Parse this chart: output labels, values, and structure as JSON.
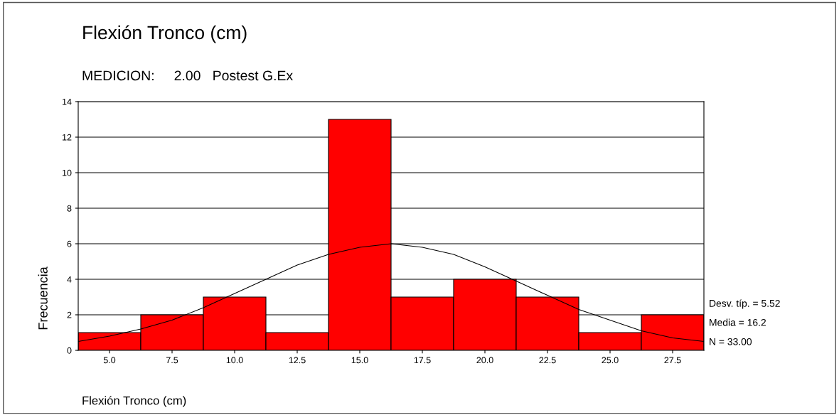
{
  "chart_data": {
    "type": "histogram",
    "title": "Flexión Tronco (cm)",
    "subtitle": "MEDICION:     2.00   Postest G.Ex",
    "xlabel": "Flexión Tronco (cm)",
    "ylabel": "Frecuencia",
    "bins": [
      3.75,
      6.25,
      8.75,
      11.25,
      13.75,
      16.25,
      18.75,
      21.25,
      23.75,
      26.25,
      28.75
    ],
    "values": [
      1,
      2,
      3,
      1,
      13,
      3,
      4,
      3,
      1,
      2
    ],
    "color": "#ff0000",
    "series": [
      {
        "type": "line",
        "color": "#000000",
        "x": [
          3.75,
          5,
          6.25,
          7.5,
          8.75,
          10,
          11.25,
          12.5,
          13.75,
          15,
          16.25,
          17.5,
          18.75,
          20,
          21.25,
          22.5,
          23.75,
          25,
          26.25,
          27.5,
          28.75
        ],
        "values": [
          0.5,
          0.8,
          1.2,
          1.7,
          2.4,
          3.2,
          4.0,
          4.8,
          5.4,
          5.8,
          6.0,
          5.8,
          5.4,
          4.7,
          3.9,
          3.1,
          2.3,
          1.7,
          1.1,
          0.7,
          0.5
        ]
      }
    ],
    "xlim": [
      3.75,
      28.75
    ],
    "xticks": [
      {
        "value": 5,
        "label": "5.0"
      },
      {
        "value": 7.5,
        "label": "7.5"
      },
      {
        "value": 10,
        "label": "10.0"
      },
      {
        "value": 12.5,
        "label": "12.5"
      },
      {
        "value": 15,
        "label": "15.0"
      },
      {
        "value": 17.5,
        "label": "17.5"
      },
      {
        "value": 20,
        "label": "20.0"
      },
      {
        "value": 22.5,
        "label": "22.5"
      },
      {
        "value": 25,
        "label": "25.0"
      },
      {
        "value": 27.5,
        "label": "27.5"
      }
    ],
    "ylim": [
      0,
      14
    ],
    "yticks": [
      0,
      2,
      4,
      6,
      8,
      10,
      12,
      14
    ],
    "grid": "y",
    "annotations": [
      "Desv. típ. = 5.52",
      "Media = 16.2",
      "N = 33.00"
    ]
  }
}
